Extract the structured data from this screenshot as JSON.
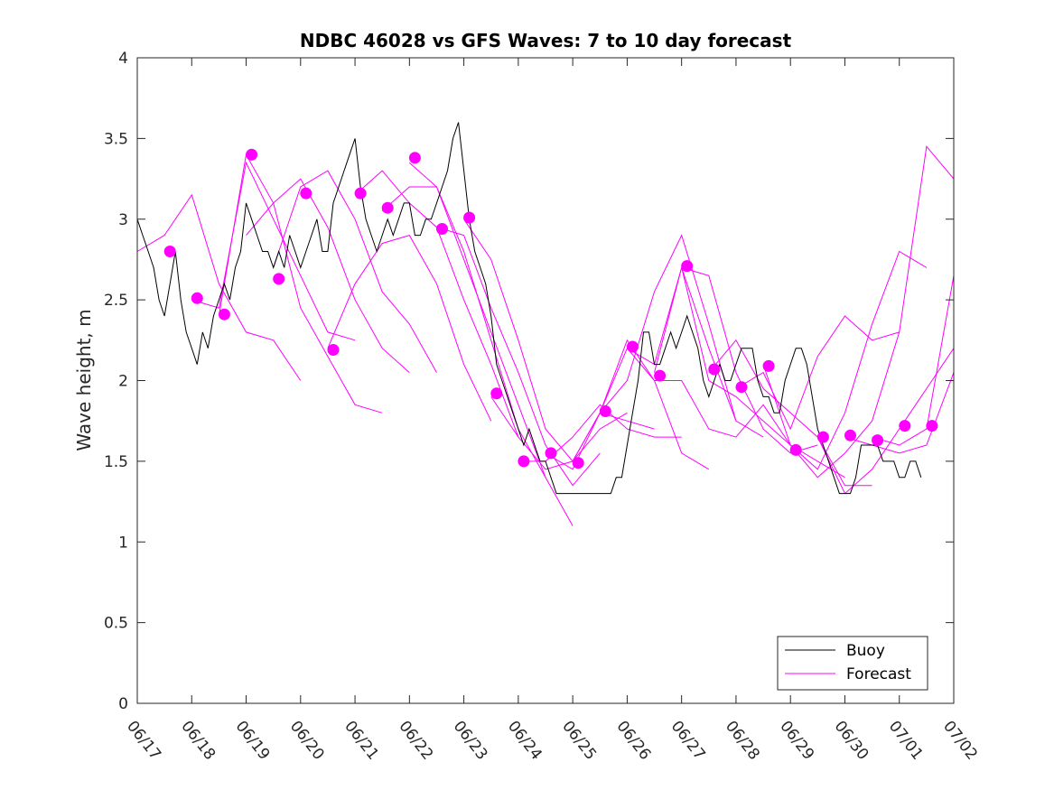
{
  "chart_data": {
    "type": "line",
    "title": "NDBC 46028 vs GFS Waves: 7 to 10 day forecast",
    "xlabel": "",
    "ylabel": "Wave height, m",
    "xlim": [
      "06/17",
      "07/02"
    ],
    "ylim": [
      0,
      4
    ],
    "xticks": [
      "06/17",
      "06/18",
      "06/19",
      "06/20",
      "06/21",
      "06/22",
      "06/23",
      "06/24",
      "06/25",
      "06/26",
      "06/27",
      "06/28",
      "06/29",
      "06/30",
      "07/01",
      "07/02"
    ],
    "yticks": [
      "0",
      "0.5",
      "1",
      "1.5",
      "2",
      "2.5",
      "3",
      "3.5",
      "4"
    ],
    "grid": false,
    "legend": {
      "position": "bottom-right",
      "entries": [
        "Buoy",
        "Forecast"
      ]
    },
    "colors": {
      "buoy": "#000000",
      "forecast": "#ff00ff"
    },
    "buoy": {
      "name": "Buoy",
      "x": [
        0.0,
        0.1,
        0.2,
        0.3,
        0.4,
        0.5,
        0.6,
        0.7,
        0.8,
        0.9,
        1.0,
        1.1,
        1.2,
        1.3,
        1.4,
        1.5,
        1.6,
        1.7,
        1.8,
        1.9,
        2.0,
        2.1,
        2.2,
        2.3,
        2.4,
        2.5,
        2.6,
        2.7,
        2.8,
        2.9,
        3.0,
        3.1,
        3.2,
        3.3,
        3.4,
        3.5,
        3.6,
        3.7,
        3.8,
        3.9,
        4.0,
        4.1,
        4.2,
        4.3,
        4.4,
        4.5,
        4.6,
        4.7,
        4.8,
        4.9,
        5.0,
        5.1,
        5.2,
        5.3,
        5.4,
        5.5,
        5.6,
        5.7,
        5.8,
        5.9,
        6.0,
        6.1,
        6.2,
        6.3,
        6.4,
        6.5,
        6.6,
        6.7,
        6.8,
        6.9,
        7.0,
        7.1,
        7.2,
        7.3,
        7.4,
        7.5,
        7.6,
        7.7,
        7.8,
        7.9,
        8.0,
        8.1,
        8.2,
        8.3,
        8.4,
        8.5,
        8.6,
        8.7,
        8.8,
        8.9,
        9.0,
        9.1,
        9.2,
        9.3,
        9.4,
        9.5,
        9.6,
        9.7,
        9.8,
        9.9,
        10.0,
        10.1,
        10.2,
        10.3,
        10.4,
        10.5,
        10.6,
        10.7,
        10.8,
        10.9,
        11.0,
        11.1,
        11.2,
        11.3,
        11.4,
        11.5,
        11.6,
        11.7,
        11.8,
        11.9,
        12.0,
        12.1,
        12.2,
        12.3,
        12.4,
        12.5,
        12.6,
        12.7,
        12.8,
        12.9,
        13.0,
        13.1,
        13.2,
        13.3,
        13.4,
        13.5,
        13.6,
        13.7,
        13.8,
        13.9,
        14.0,
        14.1,
        14.2,
        14.3,
        14.4
      ],
      "values": [
        3.0,
        2.9,
        2.8,
        2.7,
        2.5,
        2.4,
        2.6,
        2.8,
        2.5,
        2.3,
        2.2,
        2.1,
        2.3,
        2.2,
        2.4,
        2.5,
        2.6,
        2.5,
        2.7,
        2.8,
        3.1,
        3.0,
        2.9,
        2.8,
        2.8,
        2.7,
        2.8,
        2.7,
        2.9,
        2.8,
        2.7,
        2.8,
        2.9,
        3.0,
        2.8,
        2.8,
        3.1,
        3.2,
        3.3,
        3.4,
        3.5,
        3.2,
        3.0,
        2.9,
        2.8,
        2.9,
        3.0,
        2.9,
        3.0,
        3.1,
        3.1,
        2.9,
        2.9,
        3.0,
        3.0,
        3.1,
        3.2,
        3.3,
        3.5,
        3.6,
        3.3,
        3.0,
        2.8,
        2.7,
        2.6,
        2.4,
        2.1,
        2.0,
        1.9,
        1.8,
        1.7,
        1.6,
        1.7,
        1.6,
        1.5,
        1.5,
        1.4,
        1.3,
        1.3,
        1.3,
        1.3,
        1.3,
        1.3,
        1.3,
        1.3,
        1.3,
        1.3,
        1.3,
        1.4,
        1.4,
        1.6,
        1.8,
        2.0,
        2.3,
        2.3,
        2.1,
        2.1,
        2.2,
        2.3,
        2.2,
        2.3,
        2.4,
        2.3,
        2.2,
        2.0,
        1.9,
        2.0,
        2.1,
        2.0,
        2.0,
        2.1,
        2.2,
        2.2,
        2.2,
        2.0,
        1.9,
        1.9,
        1.8,
        1.8,
        2.0,
        2.1,
        2.2,
        2.2,
        2.1,
        1.9,
        1.7,
        1.6,
        1.5,
        1.4,
        1.3,
        1.3,
        1.3,
        1.4,
        1.6,
        1.6,
        1.6,
        1.6,
        1.5,
        1.5,
        1.5,
        1.4,
        1.4,
        1.5,
        1.5,
        1.4
      ]
    },
    "forecast_series": [
      {
        "x": [
          0.0,
          0.5,
          1.0,
          1.5,
          2.0,
          2.5,
          3.0
        ],
        "values": [
          2.8,
          2.9,
          3.15,
          2.6,
          2.3,
          2.25,
          2.0
        ]
      },
      {
        "x": [
          1.0,
          1.5,
          2.0,
          2.5,
          3.0,
          3.5,
          4.0
        ],
        "values": [
          2.5,
          2.45,
          3.35,
          3.0,
          2.65,
          2.3,
          2.25
        ]
      },
      {
        "x": [
          1.5,
          2.0,
          2.5,
          3.0,
          3.5,
          4.0,
          4.5
        ],
        "values": [
          2.4,
          3.4,
          3.1,
          2.45,
          2.15,
          1.85,
          1.8
        ]
      },
      {
        "x": [
          2.0,
          2.5,
          3.0,
          3.5,
          4.0,
          4.5,
          5.0
        ],
        "values": [
          2.9,
          3.1,
          3.25,
          2.95,
          2.5,
          2.2,
          2.05
        ]
      },
      {
        "x": [
          2.5,
          3.0,
          3.5,
          4.0,
          4.5,
          5.0,
          5.5
        ],
        "values": [
          2.7,
          3.2,
          3.3,
          3.0,
          2.55,
          2.35,
          2.05
        ]
      },
      {
        "x": [
          3.5,
          4.0,
          4.5,
          5.0,
          5.5,
          6.0,
          6.5
        ],
        "values": [
          2.2,
          2.6,
          2.85,
          2.9,
          2.6,
          2.1,
          1.75
        ]
      },
      {
        "x": [
          4.0,
          4.5,
          5.0,
          5.5,
          6.0,
          6.5,
          7.0
        ],
        "values": [
          3.15,
          3.3,
          3.1,
          2.95,
          2.5,
          2.1,
          1.65
        ]
      },
      {
        "x": [
          4.5,
          5.0,
          5.5,
          6.0,
          6.5,
          7.0,
          7.5
        ],
        "values": [
          3.05,
          3.2,
          3.2,
          2.8,
          2.25,
          1.7,
          1.4
        ]
      },
      {
        "x": [
          5.0,
          5.5,
          6.0,
          6.5,
          7.0,
          7.5,
          8.0
        ],
        "values": [
          3.35,
          3.2,
          2.75,
          2.3,
          1.85,
          1.4,
          1.1
        ]
      },
      {
        "x": [
          5.5,
          6.0,
          6.5,
          7.0,
          7.5,
          8.0,
          8.5
        ],
        "values": [
          2.95,
          2.9,
          2.45,
          2.05,
          1.6,
          1.35,
          1.55
        ]
      },
      {
        "x": [
          6.0,
          6.5,
          7.0,
          7.5,
          8.0,
          8.5,
          9.0
        ],
        "values": [
          3.0,
          2.75,
          2.25,
          1.7,
          1.5,
          1.7,
          1.8
        ]
      },
      {
        "x": [
          6.5,
          7.0,
          7.5,
          8.0,
          8.5,
          9.0,
          9.5
        ],
        "values": [
          1.9,
          1.65,
          1.45,
          1.5,
          1.8,
          1.75,
          1.7
        ]
      },
      {
        "x": [
          7.0,
          7.5,
          8.0,
          8.5,
          9.0,
          9.5,
          10.0
        ],
        "values": [
          1.5,
          1.5,
          1.65,
          1.85,
          1.7,
          1.65,
          1.65
        ]
      },
      {
        "x": [
          7.5,
          8.0,
          8.5,
          9.0,
          9.5,
          10.0,
          10.5
        ],
        "values": [
          1.55,
          1.45,
          1.8,
          2.25,
          2.0,
          1.55,
          1.45
        ]
      },
      {
        "x": [
          8.0,
          8.5,
          9.0,
          9.5,
          10.0,
          10.5,
          11.0
        ],
        "values": [
          1.5,
          1.8,
          2.0,
          2.55,
          2.9,
          2.35,
          1.75
        ]
      },
      {
        "x": [
          8.5,
          9.0,
          9.5,
          10.0,
          10.5,
          11.0,
          11.5
        ],
        "values": [
          1.8,
          2.2,
          2.1,
          2.7,
          2.2,
          1.75,
          1.65
        ]
      },
      {
        "x": [
          9.0,
          9.5,
          10.0,
          10.5,
          11.0,
          11.5,
          12.0
        ],
        "values": [
          2.2,
          2.0,
          2.0,
          1.7,
          1.65,
          1.85,
          1.6
        ]
      },
      {
        "x": [
          9.5,
          10.0,
          10.5,
          11.0,
          11.5,
          12.0,
          12.5
        ],
        "values": [
          2.05,
          2.7,
          2.65,
          2.05,
          1.7,
          1.55,
          1.6
        ]
      },
      {
        "x": [
          10.0,
          10.5,
          11.0,
          11.5,
          12.0,
          12.5,
          13.0
        ],
        "values": [
          2.7,
          2.0,
          1.9,
          1.75,
          1.6,
          1.5,
          1.4
        ]
      },
      {
        "x": [
          10.5,
          11.0,
          11.5,
          12.0,
          12.5,
          13.0,
          13.5
        ],
        "values": [
          2.05,
          2.25,
          1.95,
          1.8,
          1.65,
          1.35,
          1.35
        ]
      },
      {
        "x": [
          11.0,
          11.5,
          12.0,
          12.5,
          13.0,
          13.5,
          14.0
        ],
        "values": [
          1.95,
          2.05,
          1.7,
          2.15,
          2.4,
          2.25,
          2.3
        ]
      },
      {
        "x": [
          11.5,
          12.0,
          12.5,
          13.0,
          13.5,
          14.0,
          14.5
        ],
        "values": [
          2.1,
          1.6,
          1.45,
          1.8,
          2.35,
          2.8,
          2.7
        ]
      },
      {
        "x": [
          12.0,
          12.5,
          13.0,
          13.5,
          14.0,
          14.5,
          15.0
        ],
        "values": [
          1.6,
          1.4,
          1.55,
          1.75,
          2.3,
          3.45,
          3.25
        ]
      },
      {
        "x": [
          12.5,
          13.0,
          13.5,
          14.0,
          14.5,
          15.0
        ],
        "values": [
          1.65,
          1.3,
          1.45,
          1.7,
          1.95,
          2.2
        ]
      },
      {
        "x": [
          13.0,
          13.5,
          14.0,
          14.5,
          15.0
        ],
        "values": [
          1.65,
          1.6,
          1.55,
          1.6,
          2.05
        ]
      },
      {
        "x": [
          13.5,
          14.0,
          14.5,
          15.0
        ],
        "values": [
          1.65,
          1.6,
          1.7,
          2.65
        ]
      }
    ],
    "forecast_markers": {
      "x": [
        0.6,
        1.1,
        1.6,
        2.1,
        2.6,
        3.1,
        3.6,
        4.1,
        4.6,
        5.1,
        5.6,
        6.1,
        6.6,
        7.1,
        7.6,
        8.1,
        8.6,
        9.1,
        9.6,
        10.1,
        10.6,
        11.1,
        11.6,
        12.1,
        12.6,
        13.1,
        13.6,
        14.1,
        14.6
      ],
      "values": [
        2.8,
        2.51,
        2.41,
        3.4,
        2.63,
        3.16,
        2.19,
        3.16,
        3.07,
        3.38,
        2.94,
        3.01,
        1.92,
        1.5,
        1.55,
        1.49,
        1.81,
        2.21,
        2.03,
        2.71,
        2.07,
        1.96,
        2.09,
        1.57,
        1.65,
        1.66,
        1.63,
        1.72,
        1.72
      ]
    }
  }
}
